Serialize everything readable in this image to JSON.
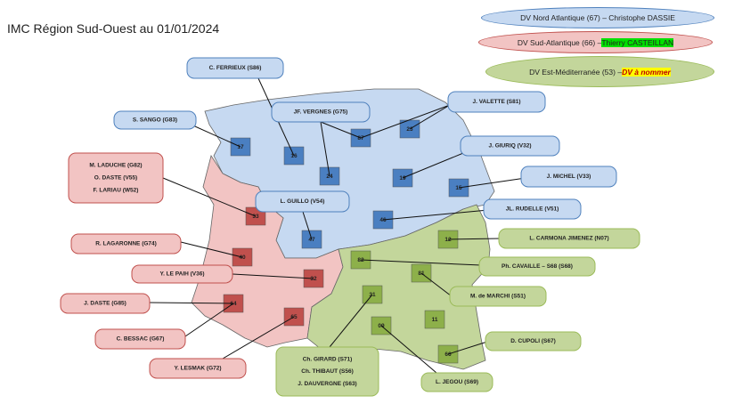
{
  "title": "IMC Région Sud-Ouest au 01/01/2024",
  "regions": [
    {
      "legend": {
        "text": "DV Nord Atlantique (67) – Christophe DASSIE"
      },
      "color": "#c6d9f1",
      "stroke": "#4f81bd",
      "square": "#4a7fc1",
      "departments": [
        "17",
        "16",
        "87",
        "23",
        "24",
        "19",
        "15",
        "46",
        "47"
      ],
      "callouts": [
        {
          "lines": [
            "C. FERRIEUX (S86)"
          ]
        },
        {
          "lines": [
            "S. SANGO (G83)"
          ]
        },
        {
          "lines": [
            "JF. VERGNES (G75)"
          ]
        },
        {
          "lines": [
            "J. VALETTE (S81)"
          ]
        },
        {
          "lines": [
            "J. GIURIQ (V32)"
          ]
        },
        {
          "lines": [
            "J. MICHEL (V33)"
          ]
        },
        {
          "lines": [
            "JL. RUDELLE (V51)"
          ]
        },
        {
          "lines": [
            "L. GUILLO (V54)"
          ]
        }
      ]
    },
    {
      "legend": {
        "text": "DV Sud-Atlantique (66) – ",
        "name": "Thierry CASTEILLAN"
      },
      "color": "#f2c4c3",
      "stroke": "#c0504d",
      "square": "#c0504d",
      "departments": [
        "33",
        "40",
        "32",
        "64",
        "65"
      ],
      "callouts": [
        {
          "lines": [
            "M. LADUCHE (G82)",
            "O. DASTE (V55)",
            "F. LARIAU (W52)"
          ]
        },
        {
          "lines": [
            "R. LAGARONNE (G74)"
          ]
        },
        {
          "lines": [
            "Y. LE PAIH (V36)"
          ]
        },
        {
          "lines": [
            "J. DASTE (G85)"
          ]
        },
        {
          "lines": [
            "C. BESSAC (G67)"
          ]
        },
        {
          "lines": [
            "Y. LESMAK (G72)"
          ]
        }
      ]
    },
    {
      "legend": {
        "text": "DV Est-Méditerranée (53) – ",
        "name": "DV à nommer"
      },
      "color": "#c3d69b",
      "stroke": "#9bbb59",
      "square": "#8db04a",
      "departments": [
        "12",
        "82",
        "81",
        "31",
        "09",
        "11",
        "66"
      ],
      "callouts": [
        {
          "lines": [
            "L. CARMONA JIMENEZ (N07)"
          ]
        },
        {
          "lines": [
            "Ph. CAVAILLE – S68 (S68)"
          ]
        },
        {
          "lines": [
            "M. de MARCHI (S51)"
          ]
        },
        {
          "lines": [
            "D. CUPOLI (S67)"
          ]
        },
        {
          "lines": [
            "Ch. GIRARD (S71)",
            "Ch. THIBAUT (S56)",
            "J. DAUVERGNE (S63)"
          ]
        },
        {
          "lines": [
            "L. JEGOU (S69)"
          ]
        }
      ]
    }
  ]
}
